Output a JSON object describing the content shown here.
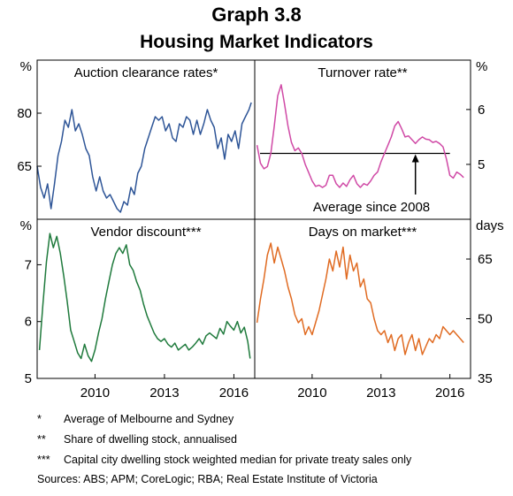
{
  "header": {
    "graph_number": "Graph 3.8",
    "title": "Housing Market Indicators"
  },
  "chart_data": [
    {
      "type": "line",
      "panel": "top-left",
      "title": "Auction clearance rates*",
      "unit": "%",
      "y_axis_side": "left",
      "ylim": [
        50,
        95
      ],
      "yticks": [
        65,
        80
      ],
      "xlim": [
        2007.5,
        2016.9
      ],
      "color": "#2e5597",
      "x": [
        2007.5,
        2007.65,
        2007.8,
        2007.95,
        2008.1,
        2008.25,
        2008.4,
        2008.55,
        2008.7,
        2008.85,
        2009.0,
        2009.15,
        2009.3,
        2009.45,
        2009.6,
        2009.75,
        2009.9,
        2010.05,
        2010.2,
        2010.35,
        2010.5,
        2010.65,
        2010.8,
        2010.95,
        2011.1,
        2011.25,
        2011.4,
        2011.55,
        2011.7,
        2011.85,
        2012.0,
        2012.15,
        2012.3,
        2012.45,
        2012.6,
        2012.75,
        2012.9,
        2013.05,
        2013.2,
        2013.35,
        2013.5,
        2013.65,
        2013.8,
        2013.95,
        2014.1,
        2014.25,
        2014.4,
        2014.55,
        2014.7,
        2014.85,
        2015.0,
        2015.15,
        2015.3,
        2015.45,
        2015.6,
        2015.75,
        2015.9,
        2016.05,
        2016.2,
        2016.35,
        2016.5,
        2016.65,
        2016.75
      ],
      "y": [
        65,
        59,
        56,
        60,
        53,
        60,
        68,
        72,
        78,
        76,
        81,
        75,
        77,
        74,
        70,
        68,
        62,
        58,
        62,
        58,
        56,
        57,
        55,
        53,
        52,
        55,
        54,
        59,
        57,
        63,
        65,
        70,
        73,
        76,
        79,
        78,
        79,
        75,
        77,
        73,
        72,
        77,
        76,
        79,
        78,
        74,
        78,
        74,
        77,
        81,
        78,
        76,
        70,
        73,
        67,
        74,
        72,
        75,
        70,
        77,
        79,
        81,
        83
      ]
    },
    {
      "type": "line",
      "panel": "top-right",
      "title": "Turnover rate**",
      "unit": "%",
      "y_axis_side": "right",
      "ylim": [
        4.0,
        6.9
      ],
      "yticks": [
        5,
        6
      ],
      "xlim": [
        2007.5,
        2016.9
      ],
      "color": "#d04aa6",
      "x": [
        2007.6,
        2007.75,
        2007.9,
        2008.05,
        2008.2,
        2008.35,
        2008.5,
        2008.65,
        2008.8,
        2008.95,
        2009.1,
        2009.25,
        2009.4,
        2009.55,
        2009.7,
        2009.85,
        2010.0,
        2010.15,
        2010.3,
        2010.45,
        2010.6,
        2010.75,
        2010.9,
        2011.05,
        2011.2,
        2011.35,
        2011.5,
        2011.65,
        2011.8,
        2011.95,
        2012.1,
        2012.25,
        2012.4,
        2012.55,
        2012.7,
        2012.85,
        2013.0,
        2013.15,
        2013.3,
        2013.45,
        2013.6,
        2013.75,
        2013.9,
        2014.05,
        2014.2,
        2014.35,
        2014.5,
        2014.65,
        2014.8,
        2014.95,
        2015.1,
        2015.25,
        2015.4,
        2015.55,
        2015.7,
        2015.85,
        2016.0,
        2016.15,
        2016.3,
        2016.45,
        2016.6
      ],
      "y": [
        5.35,
        5.02,
        4.92,
        4.96,
        5.2,
        5.7,
        6.25,
        6.45,
        6.1,
        5.7,
        5.4,
        5.25,
        5.3,
        5.2,
        5.0,
        4.85,
        4.7,
        4.6,
        4.62,
        4.58,
        4.62,
        4.8,
        4.8,
        4.65,
        4.58,
        4.66,
        4.6,
        4.72,
        4.8,
        4.65,
        4.58,
        4.65,
        4.62,
        4.7,
        4.8,
        4.86,
        5.05,
        5.2,
        5.35,
        5.5,
        5.7,
        5.78,
        5.65,
        5.5,
        5.52,
        5.45,
        5.38,
        5.45,
        5.5,
        5.46,
        5.45,
        5.4,
        5.42,
        5.38,
        5.32,
        5.1,
        4.8,
        4.75,
        4.86,
        4.82,
        4.76
      ],
      "reference_line": {
        "value": 5.2,
        "label": "Average since 2008",
        "arrow_x": 2014.5
      }
    },
    {
      "type": "line",
      "panel": "bottom-left",
      "title": "Vendor discount***",
      "unit": "%",
      "y_axis_side": "left",
      "ylim": [
        5,
        7.8
      ],
      "yticks": [
        5,
        6,
        7
      ],
      "xlim": [
        2007.5,
        2016.9
      ],
      "xticks": [
        2010,
        2013,
        2016
      ],
      "color": "#1f7a3c",
      "x": [
        2007.6,
        2007.75,
        2007.9,
        2008.05,
        2008.2,
        2008.35,
        2008.5,
        2008.65,
        2008.8,
        2008.95,
        2009.1,
        2009.25,
        2009.4,
        2009.55,
        2009.7,
        2009.85,
        2010.0,
        2010.15,
        2010.3,
        2010.45,
        2010.6,
        2010.75,
        2010.9,
        2011.05,
        2011.2,
        2011.35,
        2011.5,
        2011.65,
        2011.8,
        2011.95,
        2012.1,
        2012.25,
        2012.4,
        2012.55,
        2012.7,
        2012.85,
        2013.0,
        2013.15,
        2013.3,
        2013.45,
        2013.6,
        2013.75,
        2013.9,
        2014.05,
        2014.2,
        2014.35,
        2014.5,
        2014.65,
        2014.8,
        2014.95,
        2015.1,
        2015.25,
        2015.4,
        2015.55,
        2015.7,
        2015.85,
        2016.0,
        2016.15,
        2016.3,
        2016.45,
        2016.6,
        2016.7
      ],
      "y": [
        5.5,
        6.3,
        7.05,
        7.55,
        7.3,
        7.5,
        7.2,
        6.8,
        6.35,
        5.85,
        5.65,
        5.45,
        5.35,
        5.6,
        5.4,
        5.3,
        5.5,
        5.8,
        6.05,
        6.4,
        6.7,
        7.0,
        7.2,
        7.3,
        7.2,
        7.35,
        7.0,
        6.9,
        6.7,
        6.55,
        6.3,
        6.1,
        5.95,
        5.8,
        5.7,
        5.65,
        5.7,
        5.6,
        5.55,
        5.62,
        5.5,
        5.55,
        5.6,
        5.5,
        5.55,
        5.62,
        5.7,
        5.6,
        5.75,
        5.8,
        5.75,
        5.7,
        5.88,
        5.78,
        6.0,
        5.92,
        5.85,
        6.0,
        5.8,
        5.9,
        5.65,
        5.35
      ]
    },
    {
      "type": "line",
      "panel": "bottom-right",
      "title": "Days on market***",
      "unit": "days",
      "y_axis_side": "right",
      "ylim": [
        35,
        75
      ],
      "yticks": [
        35,
        50,
        65
      ],
      "xlim": [
        2007.5,
        2016.9
      ],
      "xticks": [
        2010,
        2013,
        2016
      ],
      "color": "#e06b22",
      "x": [
        2007.6,
        2007.75,
        2007.9,
        2008.05,
        2008.2,
        2008.35,
        2008.5,
        2008.65,
        2008.8,
        2008.95,
        2009.1,
        2009.25,
        2009.4,
        2009.55,
        2009.7,
        2009.85,
        2010.0,
        2010.15,
        2010.3,
        2010.45,
        2010.6,
        2010.75,
        2010.9,
        2011.05,
        2011.2,
        2011.35,
        2011.5,
        2011.65,
        2011.8,
        2011.95,
        2012.1,
        2012.25,
        2012.4,
        2012.55,
        2012.7,
        2012.85,
        2013.0,
        2013.15,
        2013.3,
        2013.45,
        2013.6,
        2013.75,
        2013.9,
        2014.05,
        2014.2,
        2014.35,
        2014.5,
        2014.65,
        2014.8,
        2014.95,
        2015.1,
        2015.25,
        2015.4,
        2015.55,
        2015.7,
        2015.85,
        2016.0,
        2016.15,
        2016.3,
        2016.45,
        2016.6
      ],
      "y": [
        49,
        55,
        60,
        66,
        69,
        64,
        68,
        65,
        62,
        58,
        55,
        51,
        49,
        50,
        46,
        48,
        46,
        49,
        52,
        56,
        60,
        65,
        62,
        67,
        63,
        68,
        60,
        66,
        62,
        64,
        58,
        60,
        55,
        54,
        50,
        47,
        46,
        47,
        44,
        46,
        42,
        45,
        46,
        41,
        44,
        46,
        42,
        45,
        41,
        43,
        45,
        44,
        46,
        45,
        48,
        47,
        46,
        47,
        46,
        45,
        44
      ]
    }
  ],
  "notes": [
    {
      "mark": "*",
      "text": "Average of Melbourne and Sydney"
    },
    {
      "mark": "**",
      "text": "Share of dwelling stock, annualised"
    },
    {
      "mark": "***",
      "text": "Capital city dwelling stock weighted median for private treaty sales only"
    }
  ],
  "sources": "Sources:  ABS; APM; CoreLogic; RBA; Real Estate Institute of Victoria"
}
